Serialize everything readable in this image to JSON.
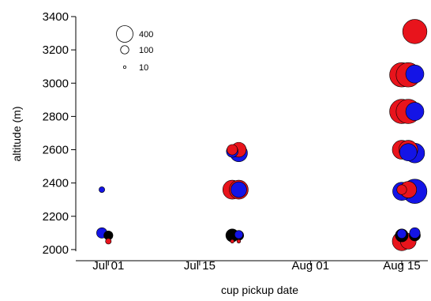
{
  "chart_data": {
    "type": "scatter",
    "title": "",
    "xlabel": "cup pickup date",
    "ylabel": "altitude (m)",
    "xlim": [
      "2014-06-26",
      "2014-08-19"
    ],
    "ylim": [
      1990,
      3400
    ],
    "x_ticks": [
      "2014-07-01",
      "2014-07-15",
      "2014-08-01",
      "2014-08-15"
    ],
    "x_tick_labels": [
      "Jul 01",
      "Jul 15",
      "Aug 01",
      "Aug 15"
    ],
    "y_ticks": [
      2000,
      2200,
      2400,
      2600,
      2800,
      3000,
      3200,
      3400
    ],
    "y_tick_labels": [
      "2000",
      "2200",
      "2400",
      "2600",
      "2800",
      "3000",
      "3200",
      "3400"
    ],
    "size_legend": {
      "entries": [
        {
          "value": 400,
          "label": "400"
        },
        {
          "value": 100,
          "label": "100"
        },
        {
          "value": 10,
          "label": "10"
        }
      ]
    },
    "series": [
      {
        "color": "#e8141c",
        "points": [
          {
            "date": "2014-07-01",
            "altitude": 2050,
            "size": 12
          },
          {
            "date": "2014-07-20",
            "altitude": 2600,
            "size": 40
          },
          {
            "date": "2014-07-21",
            "altitude": 2600,
            "size": 80
          },
          {
            "date": "2014-07-20",
            "altitude": 2360,
            "size": 130
          },
          {
            "date": "2014-07-21",
            "altitude": 2360,
            "size": 130
          },
          {
            "date": "2014-07-20",
            "altitude": 2050,
            "size": 5
          },
          {
            "date": "2014-07-21",
            "altitude": 2050,
            "size": 5
          },
          {
            "date": "2014-08-17",
            "altitude": 3310,
            "size": 215
          },
          {
            "date": "2014-08-15",
            "altitude": 3050,
            "size": 215
          },
          {
            "date": "2014-08-16",
            "altitude": 3050,
            "size": 215
          },
          {
            "date": "2014-08-15",
            "altitude": 2830,
            "size": 215
          },
          {
            "date": "2014-08-16",
            "altitude": 2830,
            "size": 215
          },
          {
            "date": "2014-08-15",
            "altitude": 2600,
            "size": 130
          },
          {
            "date": "2014-08-16",
            "altitude": 2600,
            "size": 130
          },
          {
            "date": "2014-08-15",
            "altitude": 2360,
            "size": 35
          },
          {
            "date": "2014-08-16",
            "altitude": 2360,
            "size": 100
          },
          {
            "date": "2014-08-15",
            "altitude": 2050,
            "size": 130
          },
          {
            "date": "2014-08-16",
            "altitude": 2050,
            "size": 90
          }
        ]
      },
      {
        "color": "#1414e6",
        "points": [
          {
            "date": "2014-06-30",
            "altitude": 2360,
            "size": 12
          },
          {
            "date": "2014-06-30",
            "altitude": 2100,
            "size": 40
          },
          {
            "date": "2014-07-20",
            "altitude": 2590,
            "size": 50
          },
          {
            "date": "2014-07-21",
            "altitude": 2580,
            "size": 110
          },
          {
            "date": "2014-07-21",
            "altitude": 2360,
            "size": 90
          },
          {
            "date": "2014-07-21",
            "altitude": 2090,
            "size": 25
          },
          {
            "date": "2014-08-17",
            "altitude": 3055,
            "size": 120
          },
          {
            "date": "2014-08-17",
            "altitude": 2830,
            "size": 120
          },
          {
            "date": "2014-08-16",
            "altitude": 2585,
            "size": 110
          },
          {
            "date": "2014-08-17",
            "altitude": 2580,
            "size": 140
          },
          {
            "date": "2014-08-15",
            "altitude": 2350,
            "size": 120
          },
          {
            "date": "2014-08-17",
            "altitude": 2350,
            "size": 215
          },
          {
            "date": "2014-08-15",
            "altitude": 2095,
            "size": 30
          },
          {
            "date": "2014-08-17",
            "altitude": 2100,
            "size": 40
          }
        ]
      },
      {
        "color": "#000000",
        "points": [
          {
            "date": "2014-07-01",
            "altitude": 2085,
            "size": 30
          },
          {
            "date": "2014-07-20",
            "altitude": 2085,
            "size": 60
          },
          {
            "date": "2014-07-21",
            "altitude": 2085,
            "size": 35
          },
          {
            "date": "2014-08-15",
            "altitude": 2085,
            "size": 60
          },
          {
            "date": "2014-08-17",
            "altitude": 2085,
            "size": 45
          }
        ]
      }
    ]
  }
}
